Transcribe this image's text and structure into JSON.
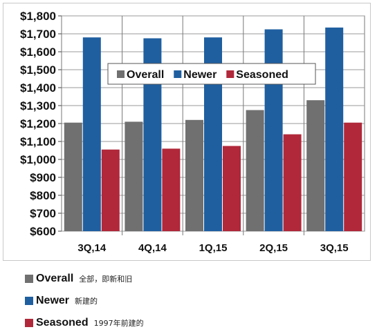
{
  "chart_data": {
    "type": "bar",
    "title": "",
    "xlabel": "",
    "ylabel": "",
    "categories": [
      "3Q,14",
      "4Q,14",
      "1Q,15",
      "2Q,15",
      "3Q,15"
    ],
    "series": [
      {
        "name": "Overall",
        "color": "#707070",
        "values": [
          1205,
          1210,
          1220,
          1275,
          1330
        ]
      },
      {
        "name": "Newer",
        "color": "#1f5fa0",
        "values": [
          1680,
          1675,
          1680,
          1725,
          1735
        ]
      },
      {
        "name": "Seasoned",
        "color": "#b0283a",
        "values": [
          1055,
          1060,
          1075,
          1140,
          1205
        ]
      }
    ],
    "ylim": [
      600,
      1800
    ],
    "yticks": [
      "$600",
      "$700",
      "$800",
      "$900",
      "$1,000",
      "$1,100",
      "$1,200",
      "$1,300",
      "$1,400",
      "$1,500",
      "$1,600",
      "$1,700",
      "$1,800"
    ],
    "ytick_values": [
      600,
      700,
      800,
      900,
      1000,
      1100,
      1200,
      1300,
      1400,
      1500,
      1600,
      1700,
      1800
    ],
    "grid": true,
    "legend_position": "top-center"
  },
  "notes": [
    {
      "name": "Overall",
      "desc": "全部，即新和旧",
      "color": "#707070"
    },
    {
      "name": "Newer",
      "desc": "新建的",
      "color": "#1f5fa0"
    },
    {
      "name": "Seasoned",
      "desc": "1997年前建的",
      "color": "#b0283a"
    }
  ]
}
